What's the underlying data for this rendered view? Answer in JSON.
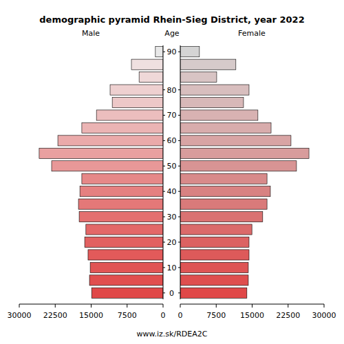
{
  "chart_data": {
    "type": "bar",
    "orientation": "horizontal",
    "title": "demographic pyramid Rhein-Sieg District, year 2022",
    "y_label": "Age",
    "footer": "www.iz.sk/RDEA2C",
    "categories": [
      "0",
      null,
      "10",
      null,
      "20",
      null,
      "30",
      null,
      "40",
      null,
      "50",
      null,
      "60",
      null,
      "70",
      null,
      "80",
      null,
      null,
      "90"
    ],
    "xlim": [
      0,
      30000
    ],
    "xticks": [
      0,
      7500,
      15000,
      22500,
      30000
    ],
    "series": [
      {
        "name": "Male",
        "values": [
          14900,
          15350,
          15200,
          15650,
          16350,
          16100,
          17500,
          17650,
          17350,
          16950,
          23250,
          25850,
          21950,
          16950,
          13900,
          10600,
          11050,
          5000,
          6600,
          1600
        ],
        "colors": [
          "#e04848",
          "#e14e4e",
          "#e15454",
          "#e25a5a",
          "#e26161",
          "#e36868",
          "#e47070",
          "#e47878",
          "#e58080",
          "#e68888",
          "#e89898",
          "#e9a0a0",
          "#eaaaaa",
          "#ebb4b4",
          "#ecbebe",
          "#edc8c8",
          "#eed0d0",
          "#efd8d8",
          "#efe0e0",
          "#e8e8e8"
        ]
      },
      {
        "name": "Female",
        "values": [
          13900,
          14200,
          14200,
          14350,
          14350,
          14950,
          17200,
          18100,
          18800,
          18100,
          24250,
          26850,
          23100,
          18950,
          16200,
          13200,
          14350,
          7600,
          11600,
          4000
        ],
        "colors": [
          "#e04848",
          "#df4e4e",
          "#de5454",
          "#dd5a5a",
          "#dc6262",
          "#db6a6a",
          "#da7272",
          "#d97a7a",
          "#d88282",
          "#d88a8a",
          "#d89494",
          "#d89c9c",
          "#d8a4a4",
          "#d8acac",
          "#d8b2b2",
          "#d8b8b8",
          "#d8bebe",
          "#d8c4c4",
          "#d6caca",
          "#d4d4d4"
        ]
      }
    ]
  }
}
